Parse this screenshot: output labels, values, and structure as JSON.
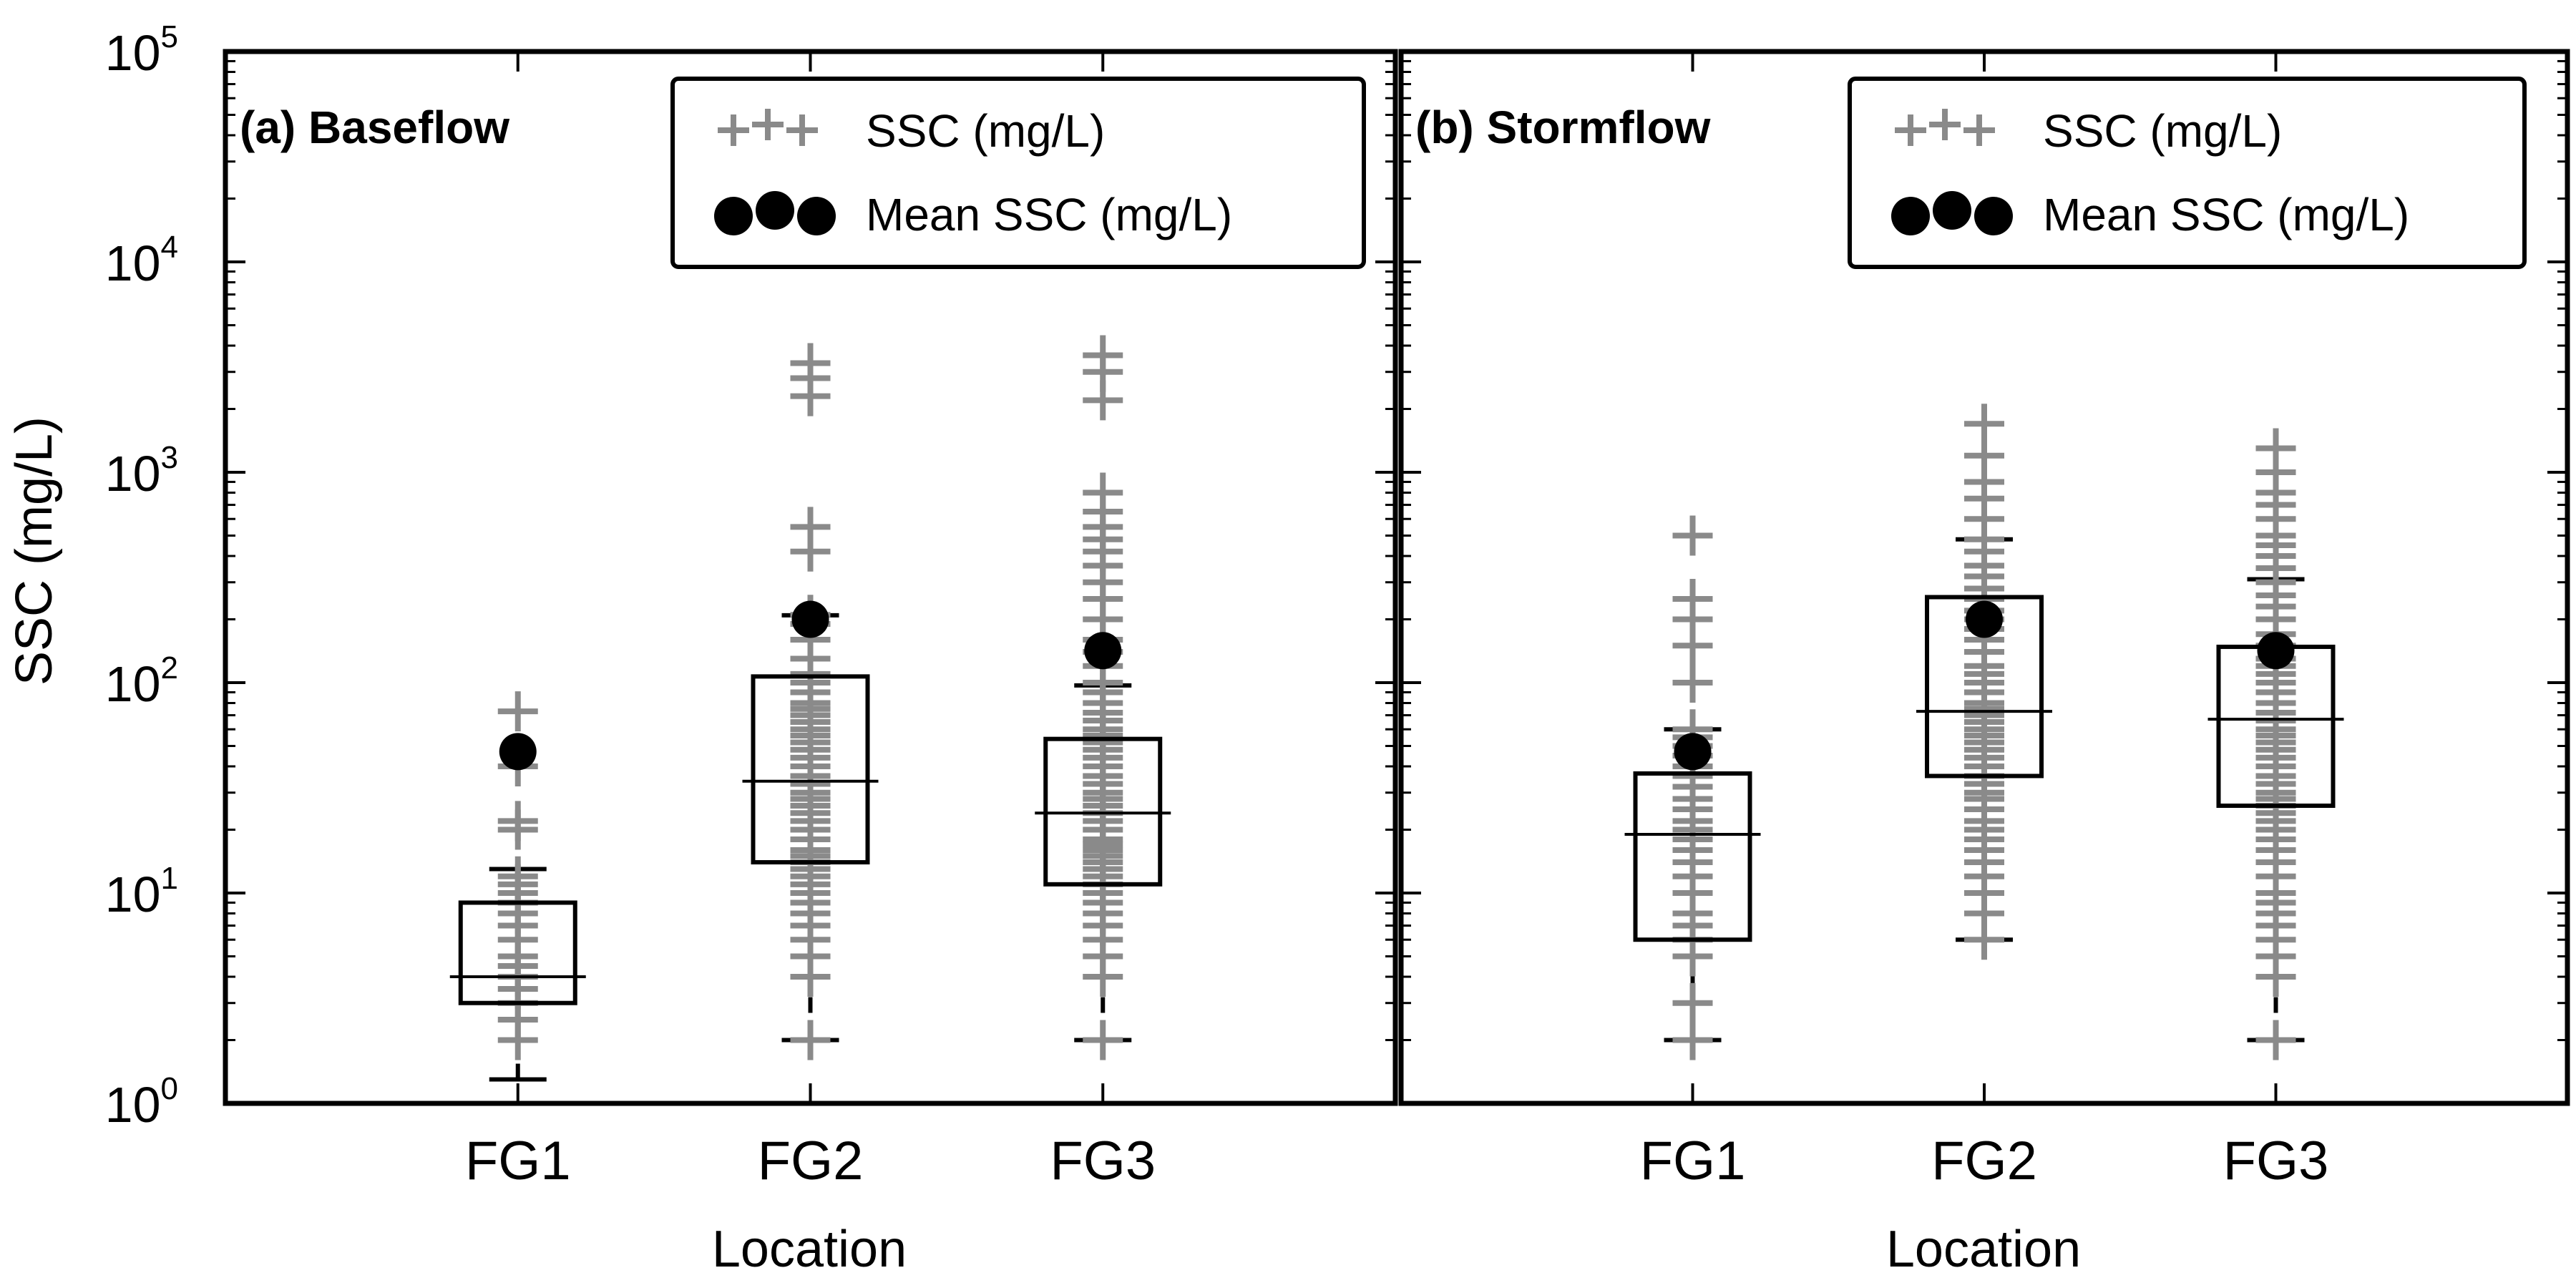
{
  "chart_data": [
    {
      "type": "box",
      "title": "(a) Baseflow",
      "xlabel": "Location",
      "ylabel": "SSC (mg/L)",
      "yscale": "log",
      "ylim": [
        1,
        100000
      ],
      "yticks": [
        {
          "base": "10",
          "exp": "0"
        },
        {
          "base": "10",
          "exp": "1"
        },
        {
          "base": "10",
          "exp": "2"
        },
        {
          "base": "10",
          "exp": "3"
        },
        {
          "base": "10",
          "exp": "4"
        },
        {
          "base": "10",
          "exp": "5"
        }
      ],
      "categories": [
        "FG1",
        "FG2",
        "FG3"
      ],
      "legend": {
        "position": "top-right",
        "entries": [
          "SSC (mg/L)",
          "Mean SSC (mg/L)"
        ]
      },
      "boxes": [
        {
          "category": "FG1",
          "whisker_low": 1.3,
          "q1": 3,
          "median": 4,
          "q3": 9,
          "whisker_high": 13,
          "mean": 47,
          "points": [
            2,
            2.5,
            3,
            3.5,
            4,
            4.5,
            5,
            6,
            7,
            8,
            9,
            10,
            11,
            12,
            20,
            22,
            40,
            73
          ]
        },
        {
          "category": "FG2",
          "whisker_low": 2,
          "q1": 14,
          "median": 34,
          "q3": 107,
          "whisker_high": 209,
          "mean": 200,
          "points": [
            2,
            4,
            5,
            6,
            7,
            8,
            9,
            10,
            11,
            12,
            13,
            14,
            15,
            16,
            18,
            20,
            22,
            24,
            26,
            28,
            30,
            33,
            36,
            40,
            44,
            48,
            52,
            56,
            60,
            65,
            70,
            75,
            80,
            90,
            100,
            110,
            130,
            160,
            190,
            210,
            420,
            550,
            2300,
            2800,
            3300
          ]
        },
        {
          "category": "FG3",
          "whisker_low": 2,
          "q1": 11,
          "median": 24,
          "q3": 54,
          "whisker_high": 97,
          "mean": 142,
          "points": [
            2,
            4,
            5,
            6,
            7,
            8,
            9,
            10,
            11,
            12,
            13,
            14,
            15,
            16,
            17,
            18,
            20,
            22,
            24,
            26,
            28,
            30,
            33,
            36,
            40,
            44,
            48,
            52,
            56,
            60,
            66,
            72,
            80,
            90,
            100,
            120,
            140,
            160,
            200,
            250,
            300,
            360,
            420,
            480,
            550,
            650,
            800,
            2200,
            3000,
            3600
          ]
        }
      ]
    },
    {
      "type": "box",
      "title": "(b) Stormflow",
      "xlabel": "Location",
      "ylabel": "",
      "yscale": "log",
      "ylim": [
        1,
        100000
      ],
      "categories": [
        "FG1",
        "FG2",
        "FG3"
      ],
      "legend": {
        "position": "top-right",
        "entries": [
          "SSC (mg/L)",
          "Mean SSC (mg/L)"
        ]
      },
      "boxes": [
        {
          "category": "FG1",
          "whisker_low": 2,
          "q1": 6,
          "median": 19,
          "q3": 37,
          "whisker_high": 60,
          "mean": 47,
          "points": [
            2,
            3,
            5,
            6,
            7,
            8,
            10,
            12,
            14,
            16,
            18,
            20,
            22,
            25,
            28,
            32,
            36,
            40,
            45,
            50,
            55,
            60,
            100,
            150,
            200,
            250,
            500
          ]
        },
        {
          "category": "FG2",
          "whisker_low": 6,
          "q1": 36,
          "median": 73,
          "q3": 255,
          "whisker_high": 480,
          "mean": 200,
          "points": [
            6,
            8,
            10,
            12,
            14,
            16,
            18,
            20,
            22,
            25,
            28,
            30,
            33,
            36,
            40,
            44,
            48,
            52,
            56,
            60,
            65,
            70,
            75,
            80,
            90,
            100,
            110,
            120,
            140,
            160,
            180,
            200,
            220,
            250,
            280,
            320,
            360,
            420,
            480,
            600,
            750,
            900,
            1200,
            1700
          ]
        },
        {
          "category": "FG3",
          "whisker_low": 2,
          "q1": 26,
          "median": 67,
          "q3": 148,
          "whisker_high": 310,
          "mean": 142,
          "points": [
            2,
            4,
            5,
            6,
            7,
            8,
            9,
            10,
            12,
            14,
            16,
            18,
            20,
            22,
            24,
            26,
            28,
            30,
            33,
            36,
            40,
            44,
            48,
            52,
            56,
            60,
            66,
            72,
            80,
            90,
            100,
            110,
            120,
            130,
            150,
            170,
            200,
            230,
            260,
            300,
            350,
            400,
            450,
            500,
            600,
            700,
            800,
            1000,
            1300
          ]
        }
      ]
    }
  ],
  "colors": {
    "points": "#8a8a8a",
    "mean": "#000000",
    "lines": "#000000"
  }
}
